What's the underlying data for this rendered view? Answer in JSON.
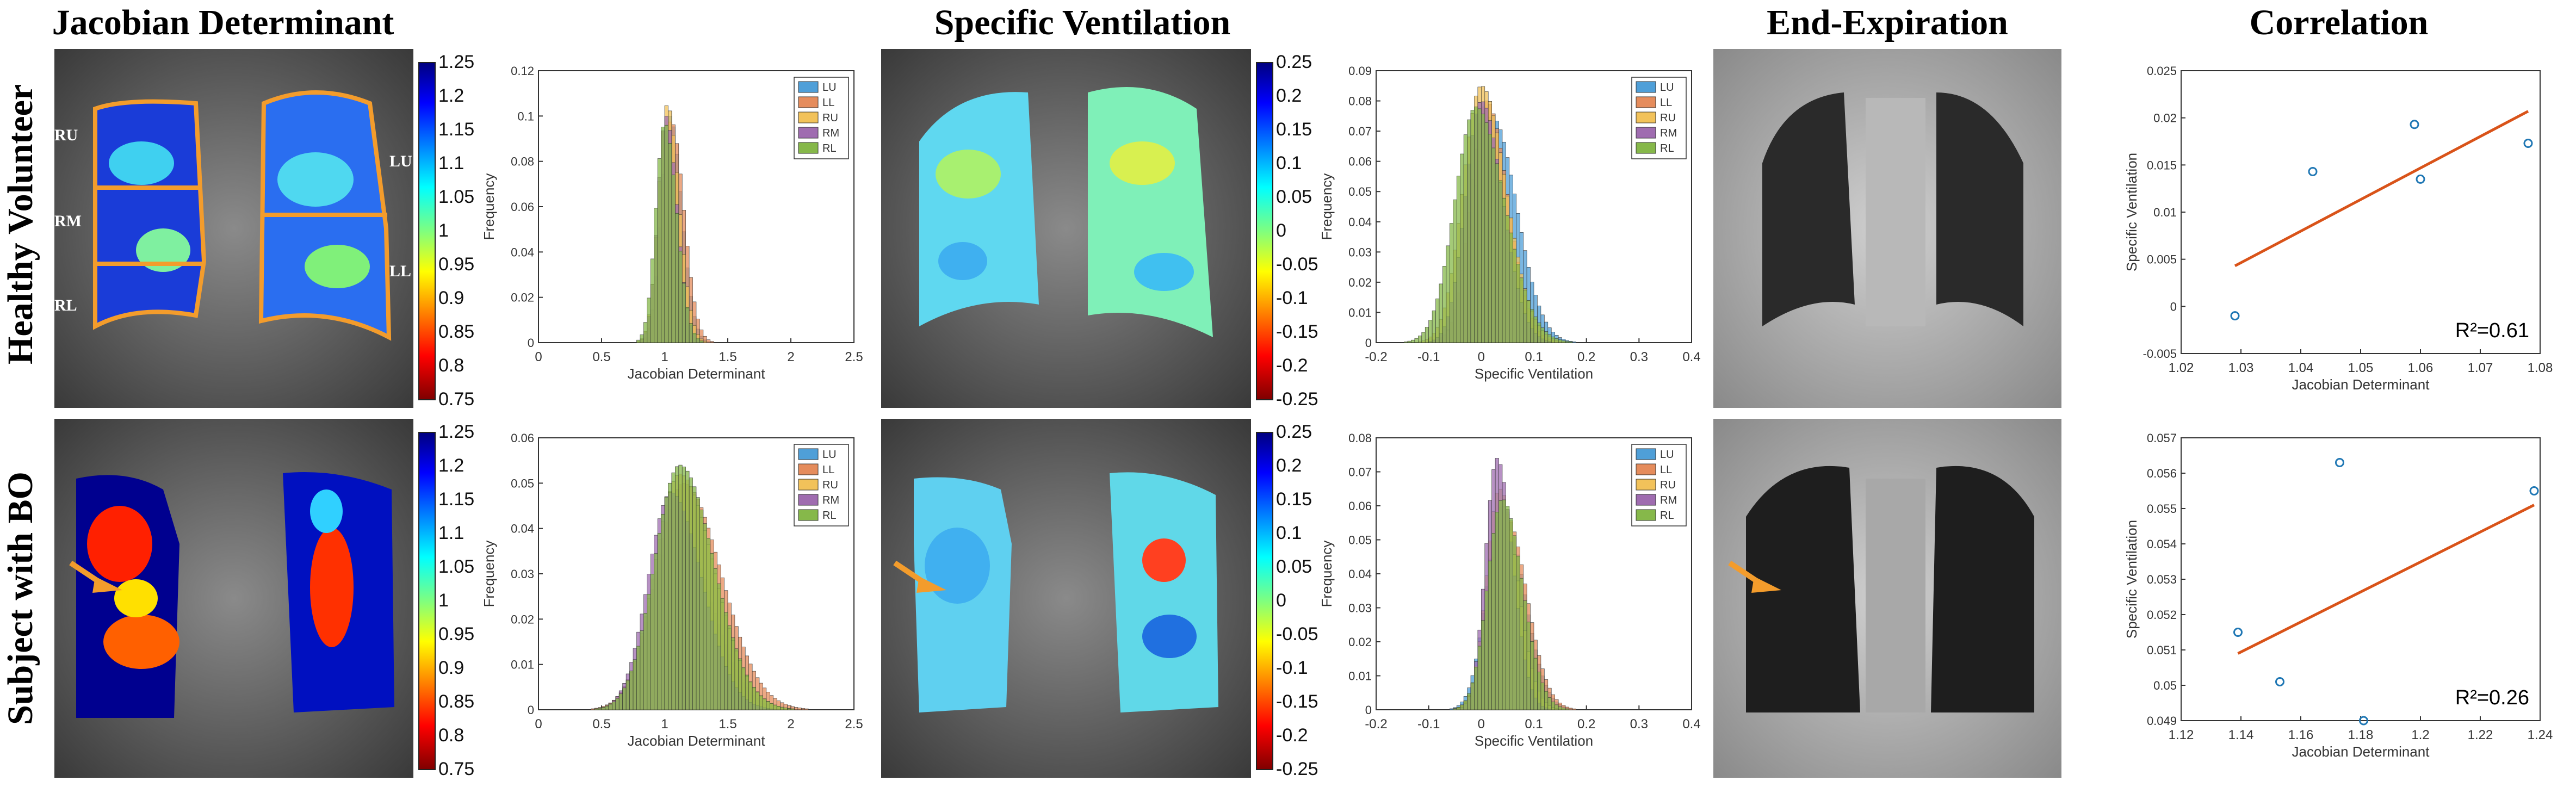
{
  "columns": {
    "jacobian": "Jacobian Determinant",
    "ventilation": "Specific Ventilation",
    "expiration": "End-Expiration",
    "correlation": "Correlation"
  },
  "rows": {
    "healthy": "Healthy Volunteer",
    "bo": "Subject with BO"
  },
  "lobe_labels": {
    "ru": "RU",
    "rm": "RM",
    "rl": "RL",
    "lu": "LU",
    "ll": "LL"
  },
  "colors": {
    "region_outline": "#f39c2c",
    "arrow": "#f39c2c",
    "fit_line": "#d95319",
    "scatter_marker": "#1f77b4",
    "LU": "#4f9fd8",
    "LL": "#e58c5c",
    "RU": "#f2c25a",
    "RM": "#9f6cb0",
    "RL": "#86b84a"
  },
  "colorbars": {
    "jacobian": [
      "1.25",
      "1.2",
      "1.15",
      "1.1",
      "1.05",
      "1",
      "0.95",
      "0.9",
      "0.85",
      "0.8",
      "0.75"
    ],
    "ventilation": [
      "0.25",
      "0.2",
      "0.15",
      "0.1",
      "0.05",
      "0",
      "-0.05",
      "-0.1",
      "-0.15",
      "-0.2",
      "-0.25"
    ]
  },
  "chart_data": [
    {
      "id": "hist-jac-healthy",
      "type": "bar",
      "xlabel": "Jacobian Determinant",
      "ylabel": "Frequency",
      "xlim": [
        0,
        2.5
      ],
      "ylim": [
        0,
        0.12
      ],
      "xticks": [
        "0",
        "0.5",
        "1",
        "1.5",
        "2",
        "2.5"
      ],
      "yticks": [
        "0",
        "0.02",
        "0.04",
        "0.06",
        "0.08",
        "0.1",
        "0.12"
      ],
      "legend": [
        "LU",
        "LL",
        "RU",
        "RM",
        "RL"
      ],
      "series": [
        {
          "name": "LU",
          "mean": 1.04,
          "sd": 0.07,
          "peak": 0.1
        },
        {
          "name": "LL",
          "mean": 1.05,
          "sd": 0.075,
          "peak": 0.098
        },
        {
          "name": "RU",
          "mean": 1.02,
          "sd": 0.07,
          "peak": 0.105
        },
        {
          "name": "RM",
          "mean": 1.01,
          "sd": 0.065,
          "peak": 0.1
        },
        {
          "name": "RL",
          "mean": 1.0,
          "sd": 0.07,
          "peak": 0.097
        }
      ]
    },
    {
      "id": "hist-sv-healthy",
      "type": "bar",
      "xlabel": "Specific Ventilation",
      "ylabel": "Frequency",
      "xlim": [
        -0.2,
        0.4
      ],
      "ylim": [
        0,
        0.09
      ],
      "xticks": [
        "-0.2",
        "-0.1",
        "0",
        "0.1",
        "0.2",
        "0.3",
        "0.4"
      ],
      "yticks": [
        "0",
        "0.01",
        "0.02",
        "0.03",
        "0.04",
        "0.05",
        "0.06",
        "0.07",
        "0.08",
        "0.09"
      ],
      "legend": [
        "LU",
        "LL",
        "RU",
        "RM",
        "RL"
      ],
      "series": [
        {
          "name": "LU",
          "mean": 0.02,
          "sd": 0.035,
          "peak": 0.075
        },
        {
          "name": "LL",
          "mean": 0.01,
          "sd": 0.03,
          "peak": 0.08
        },
        {
          "name": "RU",
          "mean": 0.0,
          "sd": 0.035,
          "peak": 0.085
        },
        {
          "name": "RM",
          "mean": 0.0,
          "sd": 0.03,
          "peak": 0.08
        },
        {
          "name": "RL",
          "mean": -0.01,
          "sd": 0.04,
          "peak": 0.078
        }
      ]
    },
    {
      "id": "hist-jac-bo",
      "type": "bar",
      "xlabel": "Jacobian Determinant",
      "ylabel": "Frequency",
      "xlim": [
        0,
        2.5
      ],
      "ylim": [
        0,
        0.06
      ],
      "xticks": [
        "0",
        "0.5",
        "1",
        "1.5",
        "2",
        "2.5"
      ],
      "yticks": [
        "0",
        "0.01",
        "0.02",
        "0.03",
        "0.04",
        "0.05",
        "0.06"
      ],
      "legend": [
        "LU",
        "LL",
        "RU",
        "RM",
        "RL"
      ],
      "series": [
        {
          "name": "LU",
          "mean": 1.1,
          "sd": 0.2,
          "peak": 0.04
        },
        {
          "name": "LL",
          "mean": 1.15,
          "sd": 0.22,
          "peak": 0.05
        },
        {
          "name": "RU",
          "mean": 1.12,
          "sd": 0.2,
          "peak": 0.052
        },
        {
          "name": "RM",
          "mean": 1.05,
          "sd": 0.18,
          "peak": 0.048
        },
        {
          "name": "RL",
          "mean": 1.12,
          "sd": 0.2,
          "peak": 0.054
        }
      ]
    },
    {
      "id": "hist-sv-bo",
      "type": "bar",
      "xlabel": "Specific Ventilation",
      "ylabel": "Frequency",
      "xlim": [
        -0.2,
        0.4
      ],
      "ylim": [
        0,
        0.08
      ],
      "xticks": [
        "-0.2",
        "-0.1",
        "0",
        "0.1",
        "0.2",
        "0.3",
        "0.4"
      ],
      "yticks": [
        "0",
        "0.01",
        "0.02",
        "0.03",
        "0.04",
        "0.05",
        "0.06",
        "0.07",
        "0.08"
      ],
      "legend": [
        "LU",
        "LL",
        "RU",
        "RM",
        "RL"
      ],
      "series": [
        {
          "name": "LU",
          "mean": 0.04,
          "sd": 0.03,
          "peak": 0.06
        },
        {
          "name": "LL",
          "mean": 0.045,
          "sd": 0.03,
          "peak": 0.058
        },
        {
          "name": "RU",
          "mean": 0.035,
          "sd": 0.025,
          "peak": 0.065
        },
        {
          "name": "RM",
          "mean": 0.03,
          "sd": 0.022,
          "peak": 0.074
        },
        {
          "name": "RL",
          "mean": 0.04,
          "sd": 0.028,
          "peak": 0.062
        }
      ]
    },
    {
      "id": "scatter-healthy",
      "type": "scatter",
      "xlabel": "Jacobian Determinant",
      "ylabel": "Specific Ventilation",
      "xlim": [
        1.02,
        1.08
      ],
      "ylim": [
        -0.005,
        0.025
      ],
      "xticks": [
        "1.02",
        "1.03",
        "1.04",
        "1.05",
        "1.06",
        "1.07",
        "1.08"
      ],
      "yticks": [
        "-0.005",
        "0",
        "0.005",
        "0.01",
        "0.015",
        "0.02",
        "0.025"
      ],
      "x": [
        1.029,
        1.042,
        1.059,
        1.06,
        1.078
      ],
      "y": [
        -0.001,
        0.0143,
        0.0193,
        0.0135,
        0.0173
      ],
      "fit": [
        [
          1.029,
          0.0043
        ],
        [
          1.078,
          0.0207
        ]
      ],
      "annotation": "R²=0.61"
    },
    {
      "id": "scatter-bo",
      "type": "scatter",
      "xlabel": "Jacobian Determinant",
      "ylabel": "Specific Ventilation",
      "xlim": [
        1.12,
        1.24
      ],
      "ylim": [
        0.049,
        0.057
      ],
      "xticks": [
        "1.12",
        "1.14",
        "1.16",
        "1.18",
        "1.2",
        "1.22",
        "1.24"
      ],
      "yticks": [
        "0.049",
        "0.05",
        "0.051",
        "0.052",
        "0.053",
        "0.054",
        "0.055",
        "0.056",
        "0.057"
      ],
      "x": [
        1.139,
        1.153,
        1.173,
        1.181,
        1.238
      ],
      "y": [
        0.0515,
        0.0501,
        0.0563,
        0.049,
        0.0555
      ],
      "fit": [
        [
          1.139,
          0.0509
        ],
        [
          1.238,
          0.0551
        ]
      ],
      "annotation": "R²=0.26"
    }
  ]
}
